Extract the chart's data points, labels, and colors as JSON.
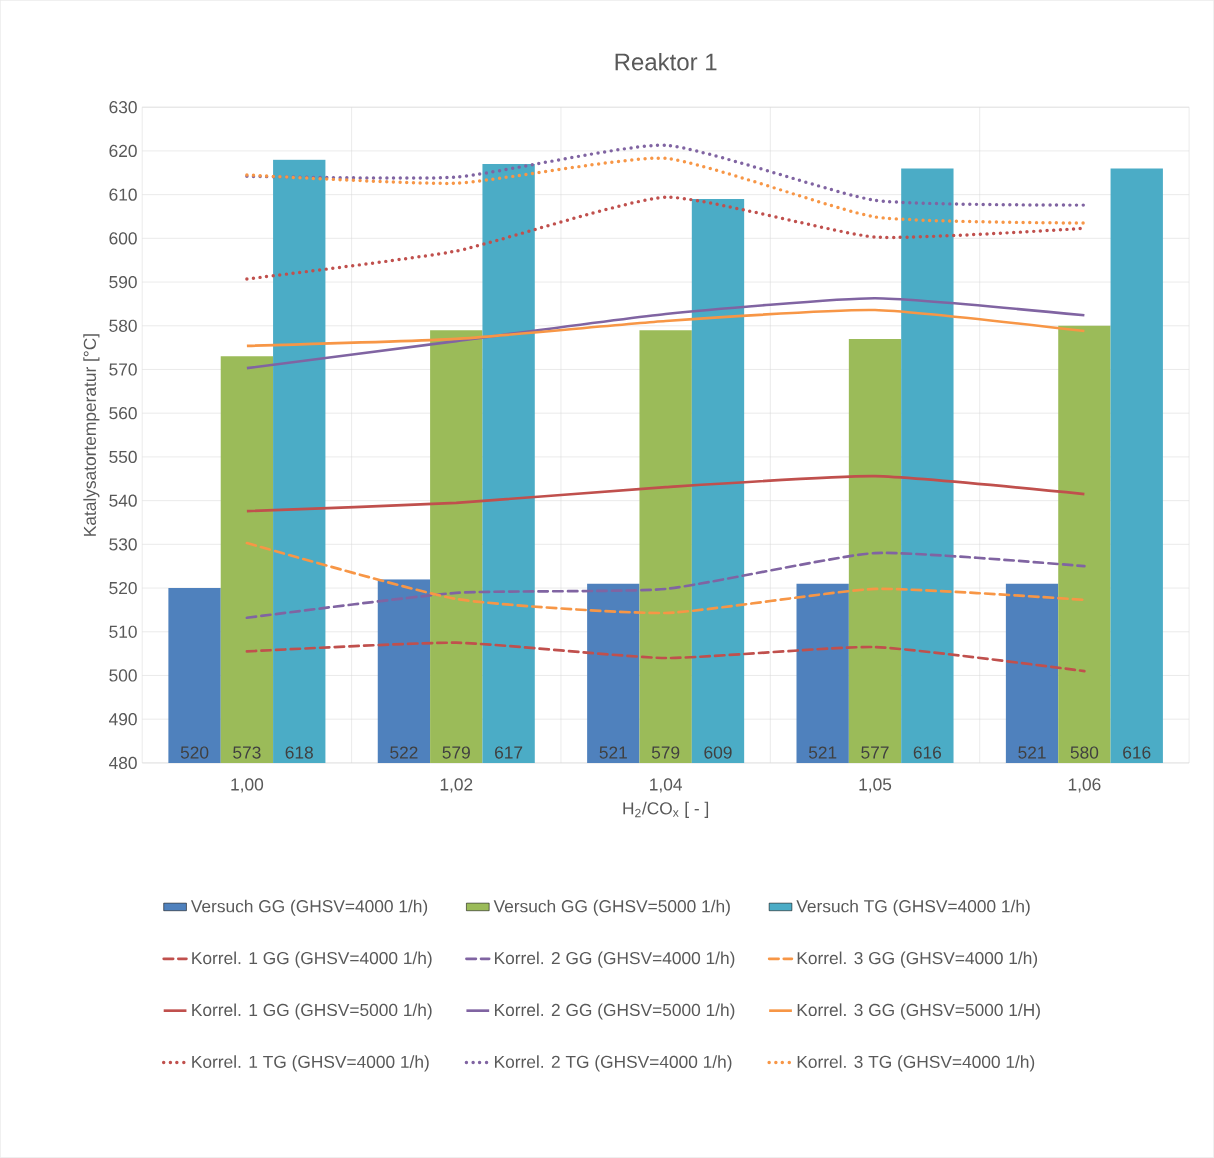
{
  "chart_data": {
    "type": "bar",
    "title": "Reaktor 1",
    "xlabel": "H$_{2}$/CO$_{x}$ [ - ]",
    "ylabel": "Katalysatortemperatur [°C]",
    "categories": [
      "1,00",
      "1,02",
      "1,04",
      "1,05",
      "1,06"
    ],
    "ylim": [
      480,
      630
    ],
    "yticks": [
      480,
      490,
      500,
      510,
      520,
      530,
      540,
      550,
      560,
      570,
      580,
      590,
      600,
      610,
      620,
      630
    ],
    "grid": true,
    "legend": "bottom",
    "series": [
      {
        "name": "Versuch GG (GHSV=4000 1/h)",
        "color": "#4f81bd",
        "values": [
          520,
          522,
          521,
          521,
          521
        ],
        "value_labels": [
          "520",
          "522",
          "521",
          "521",
          "521"
        ]
      },
      {
        "name": "Versuch GG (GHSV=5000 1/h)",
        "color": "#9bbb59",
        "values": [
          573,
          579,
          579,
          577,
          580
        ],
        "value_labels": [
          "573",
          "579",
          "579",
          "577",
          "580"
        ]
      },
      {
        "name": "Versuch TG (GHSV=4000 1/h)",
        "color": "#4bacc6",
        "values": [
          618,
          617,
          609,
          616,
          616
        ],
        "value_labels": [
          "618",
          "617",
          "609",
          "616",
          "616"
        ]
      },
      {
        "name": "Korrel. 1 GG (GHSV=4000 1/h)",
        "type": "line",
        "line_style": "dashed",
        "color": "#c0504d",
        "values": [
          505.5,
          507.5,
          504,
          506.5,
          501
        ]
      },
      {
        "name": "Korrel. 2 GG (GHSV=4000 1/h)",
        "type": "line",
        "line_style": "dashed",
        "color": "#8064a2",
        "values": [
          513.2,
          518.9,
          519.8,
          528,
          525
        ]
      },
      {
        "name": "Korrel. 3 GG (GHSV=4000 1/h)",
        "type": "line",
        "line_style": "dashed",
        "color": "#f79646",
        "values": [
          530.3,
          517.5,
          514.3,
          519.8,
          517.3
        ]
      },
      {
        "name": "Korrel. 1 GG (GHSV=5000 1/h)",
        "type": "line",
        "line_style": "solid",
        "color": "#c0504d",
        "values": [
          537.6,
          539.5,
          543.1,
          545.6,
          541.5
        ]
      },
      {
        "name": "Korrel. 2 GG (GHSV=5000 1/h)",
        "type": "line",
        "line_style": "solid",
        "color": "#8064a2",
        "values": [
          570.3,
          576.5,
          582.7,
          586.3,
          582.4
        ]
      },
      {
        "name": "Korrel. 3 GG (GHSV=5000 1/H)",
        "type": "line",
        "line_style": "solid",
        "color": "#f79646",
        "values": [
          575.4,
          577,
          581.1,
          583.6,
          578.8
        ]
      },
      {
        "name": "Korrel. 1 TG (GHSV=4000 1/h)",
        "type": "line",
        "line_style": "dotted",
        "color": "#c0504d",
        "values": [
          590.7,
          597.1,
          609.4,
          600.3,
          602.3
        ]
      },
      {
        "name": "Korrel. 2 TG (GHSV=4000 1/h)",
        "type": "line",
        "line_style": "dotted",
        "color": "#8064a2",
        "values": [
          614.2,
          614,
          621.3,
          608.7,
          607.6
        ]
      },
      {
        "name": "Korrel. 3 TG (GHSV=4000 1/h)",
        "type": "line",
        "line_style": "dotted",
        "color": "#f79646",
        "values": [
          614.5,
          612.6,
          618.3,
          604.9,
          603.5
        ]
      }
    ]
  }
}
